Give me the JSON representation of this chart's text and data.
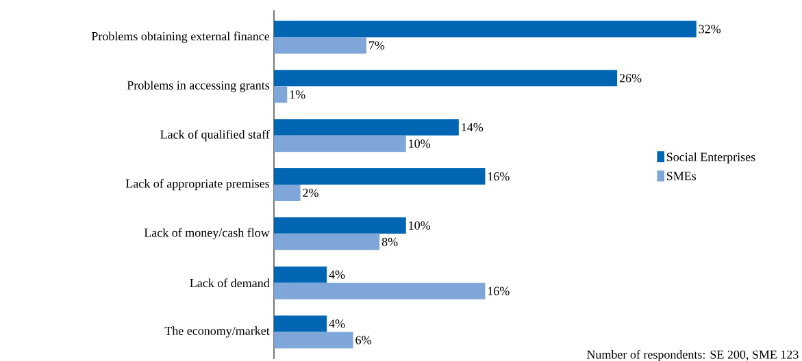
{
  "chart_data": {
    "type": "bar",
    "orientation": "horizontal",
    "categories": [
      "Problems obtaining external finance",
      "Problems in accessing grants",
      "Lack of qualified staff",
      "Lack of appropriate premises",
      "Lack of money/cash flow",
      "Lack of demand",
      "The economy/market"
    ],
    "series": [
      {
        "name": "Social Enterprises",
        "color": "#0066b3",
        "values": [
          32,
          26,
          14,
          16,
          10,
          4,
          4
        ],
        "value_labels": [
          "32%",
          "26%",
          "14%",
          "16%",
          "10%",
          "4%",
          "4%"
        ]
      },
      {
        "name": "SMEs",
        "color": "#7fa6d9",
        "values": [
          7,
          1,
          10,
          2,
          8,
          16,
          6
        ],
        "value_labels": [
          "7%",
          "1%",
          "10%",
          "2%",
          "8%",
          "16%",
          "6%"
        ]
      }
    ],
    "relative": false,
    "legend": "right",
    "annotations": [
      "Number of respondents: SE 200, SME 123"
    ]
  }
}
